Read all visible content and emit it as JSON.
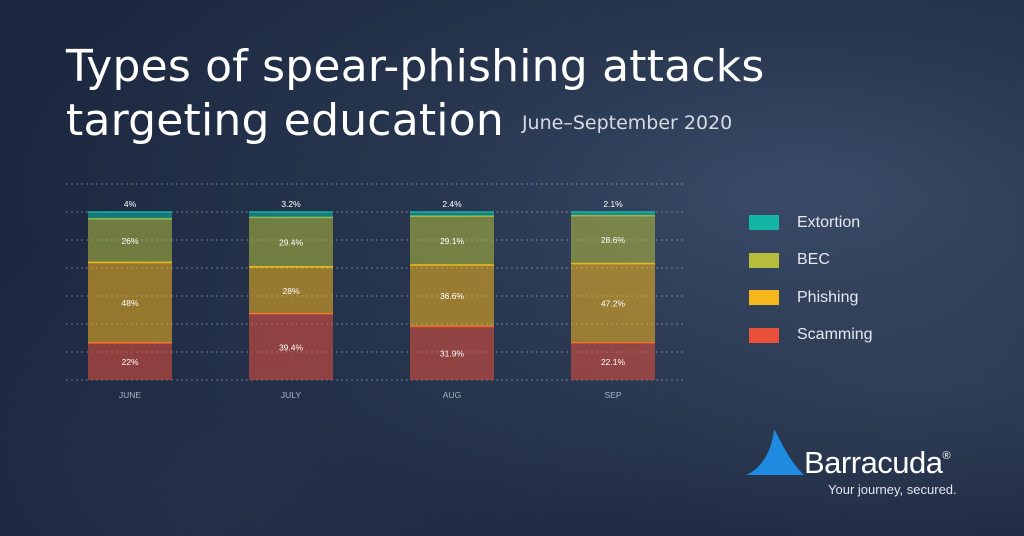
{
  "header": {
    "title_line1": "Types of spear-phishing attacks",
    "title_line2": "targeting education",
    "subtitle": "June–September 2020"
  },
  "chart_data": {
    "type": "bar",
    "stacked": true,
    "categories": [
      "JUNE",
      "JULY",
      "AUG",
      "SEP"
    ],
    "series": [
      {
        "name": "Scamming",
        "color": "#e8503a",
        "values": [
          22,
          39.4,
          31.9,
          22.1
        ],
        "labels": [
          "22%",
          "39.4%",
          "31.9%",
          "22.1%"
        ]
      },
      {
        "name": "Phishing",
        "color": "#f5b71b",
        "values": [
          48,
          28,
          36.6,
          47.2
        ],
        "labels": [
          "48%",
          "28%",
          "36.6%",
          "47.2%"
        ]
      },
      {
        "name": "BEC",
        "color": "#b5bd3c",
        "values": [
          26,
          29.4,
          29.1,
          28.6
        ],
        "labels": [
          "26%",
          "29.4%",
          "29.1%",
          "28.6%"
        ]
      },
      {
        "name": "Extortion",
        "color": "#13b5a4",
        "values": [
          4,
          3.2,
          2.4,
          2.1
        ],
        "labels": [
          "4%",
          "3.2%",
          "2.4%",
          "2.1%"
        ]
      }
    ],
    "ylim": [
      0,
      100
    ],
    "grid": true,
    "legend_position": "right"
  },
  "legend": {
    "items": [
      {
        "label": "Extortion",
        "color": "#13b5a4"
      },
      {
        "label": "BEC",
        "color": "#b5bd3c"
      },
      {
        "label": "Phishing",
        "color": "#f5b71b"
      },
      {
        "label": "Scamming",
        "color": "#e8503a"
      }
    ]
  },
  "brand": {
    "name": "Barracuda",
    "reg_mark": "®",
    "tagline": "Your journey, secured.",
    "color": "#1e8ae0"
  }
}
